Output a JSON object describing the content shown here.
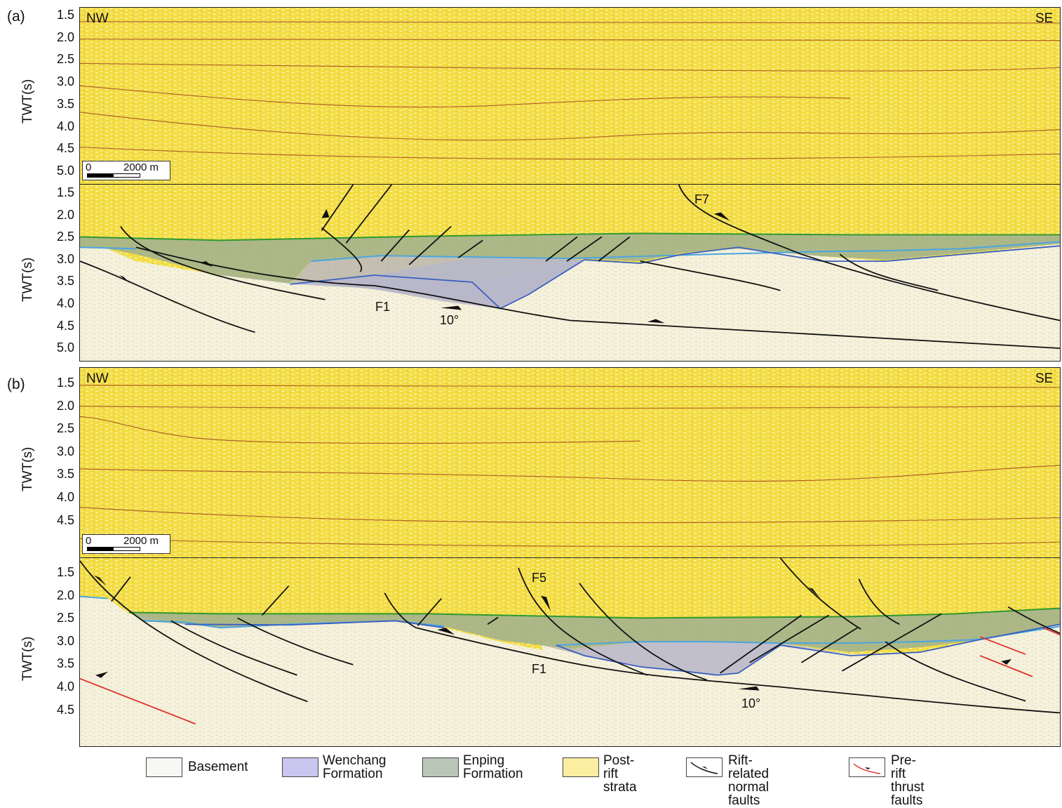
{
  "panels": {
    "a": {
      "letter": "(a)",
      "nw": "NW",
      "se": "SE",
      "y_label": "TWT(s)",
      "top_ticks": [
        "1.5",
        "2.0",
        "2.5",
        "3.0",
        "3.5",
        "4.0",
        "4.5",
        "5.0"
      ],
      "bottom_ticks": [
        "1.5",
        "2.0",
        "2.5",
        "3.0",
        "3.5",
        "4.0",
        "4.5",
        "5.0"
      ],
      "scale_zero": "0",
      "scale_text": "2000 m",
      "fault_labels": {
        "f7": "F7",
        "f1": "F1",
        "angle": "10°"
      }
    },
    "b": {
      "letter": "(b)",
      "nw": "NW",
      "se": "SE",
      "y_label": "TWT(s)",
      "top_ticks": [
        "1.5",
        "2.0",
        "2.5",
        "3.0",
        "3.5",
        "4.0",
        "4.5"
      ],
      "bottom_ticks": [
        "1.5",
        "2.0",
        "2.5",
        "3.0",
        "3.5",
        "4.0",
        "4.5"
      ],
      "scale_zero": "0",
      "scale_text": "2000 m",
      "fault_labels": {
        "f5": "F5",
        "f1": "F1",
        "angle": "10°"
      }
    }
  },
  "legend": [
    {
      "line1": "Basement",
      "line2": "",
      "color": "#f7f8f4"
    },
    {
      "line1": "Wenchang",
      "line2": "Formation",
      "color": "#c9c6f0"
    },
    {
      "line1": "Enping",
      "line2": "Formation",
      "color": "#b9c6b8"
    },
    {
      "line1": "Post-rift",
      "line2": "strata",
      "color": "#fbeea0"
    },
    {
      "line1": "Rift-related",
      "line2": "normal faults",
      "icon": "black-fault-icon"
    },
    {
      "line1": "Pre-rift",
      "line2": "thrust faults",
      "icon": "red-fault-icon"
    }
  ],
  "colors": {
    "post_rift": "#f3dc3a",
    "basement": "#f5f1dc",
    "enping": "#9fb090",
    "wenchang": "#b7b6c9",
    "enping_top": "#2e9a2e",
    "wenchang_top": "#4aa6e0",
    "basement_top": "#3a5fbf",
    "thrust": "#e0302a"
  }
}
